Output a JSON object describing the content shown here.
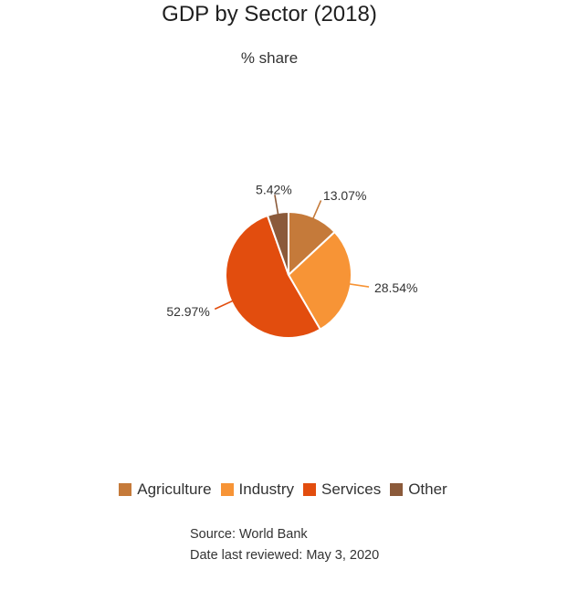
{
  "chart_data": {
    "type": "pie",
    "title": "GDP by Sector (2018)",
    "subtitle": "% share",
    "categories": [
      "Agriculture",
      "Industry",
      "Services",
      "Other"
    ],
    "values": [
      13.07,
      28.54,
      52.97,
      5.42
    ],
    "labels": [
      "13.07%",
      "28.54%",
      "52.97%",
      "5.42%"
    ],
    "colors": [
      "#c57a3a",
      "#f79436",
      "#e24d0e",
      "#8b5a3a"
    ],
    "start_angle_deg": 0,
    "direction": "clockwise",
    "legend_position": "bottom"
  },
  "footer": {
    "source": "Source: World Bank",
    "reviewed": "Date last reviewed: May 3, 2020"
  }
}
